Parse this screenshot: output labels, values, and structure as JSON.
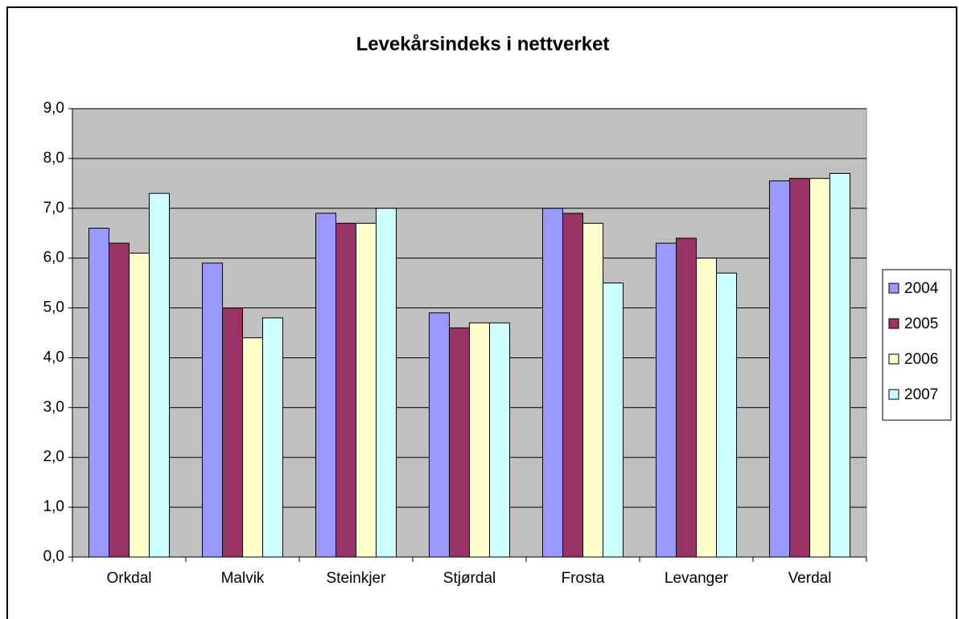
{
  "chart_data": {
    "type": "bar",
    "title": "Levekårsindeks i nettverket",
    "categories": [
      "Orkdal",
      "Malvik",
      "Steinkjer",
      "Stjørdal",
      "Frosta",
      "Levanger",
      "Verdal"
    ],
    "series": [
      {
        "name": "2004",
        "color": "#9999ff",
        "values": [
          6.6,
          5.9,
          6.9,
          4.9,
          7.0,
          6.3,
          7.55
        ]
      },
      {
        "name": "2005",
        "color": "#993366",
        "values": [
          6.3,
          5.0,
          6.7,
          4.6,
          6.9,
          6.4,
          7.6
        ]
      },
      {
        "name": "2006",
        "color": "#ffffcc",
        "values": [
          6.1,
          4.4,
          6.7,
          4.7,
          6.7,
          6.0,
          7.6
        ]
      },
      {
        "name": "2007",
        "color": "#ccffff",
        "values": [
          7.3,
          4.8,
          7.0,
          4.7,
          5.5,
          5.7,
          7.7
        ]
      }
    ],
    "ylim": [
      0,
      9
    ],
    "yticks": [
      {
        "value": 0,
        "label": "0,0"
      },
      {
        "value": 1,
        "label": "1,0"
      },
      {
        "value": 2,
        "label": "2,0"
      },
      {
        "value": 3,
        "label": "3,0"
      },
      {
        "value": 4,
        "label": "4,0"
      },
      {
        "value": 5,
        "label": "5,0"
      },
      {
        "value": 6,
        "label": "6,0"
      },
      {
        "value": 7,
        "label": "7,0"
      },
      {
        "value": 8,
        "label": "8,0"
      },
      {
        "value": 9,
        "label": "9,0"
      }
    ],
    "grid": true,
    "legend": "right"
  }
}
